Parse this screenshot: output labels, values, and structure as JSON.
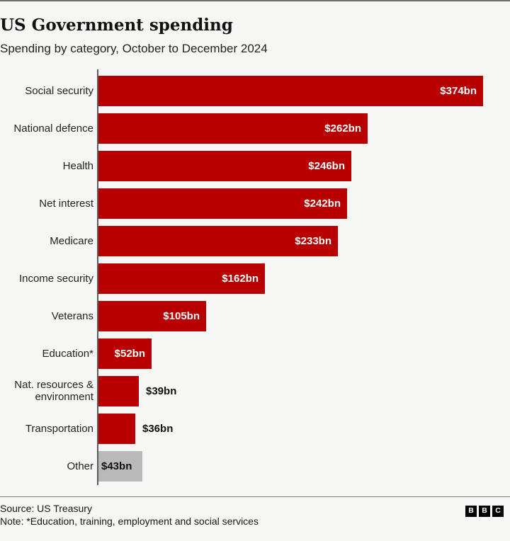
{
  "header": {
    "title": "US Government spending",
    "subtitle": "Spending by category, October to December 2024"
  },
  "chart_data": {
    "type": "bar",
    "orientation": "horizontal",
    "title": "US Government spending",
    "subtitle": "Spending by category, October to December 2024",
    "unit": "$bn",
    "xlim": [
      0,
      374
    ],
    "grid": false,
    "legend": "none",
    "categories": [
      "Social security",
      "National defence",
      "Health",
      "Net interest",
      "Medicare",
      "Income security",
      "Veterans",
      "Education*",
      "Nat. resources & environment",
      "Transportation",
      "Other"
    ],
    "values": [
      374,
      262,
      246,
      242,
      233,
      162,
      105,
      52,
      39,
      36,
      43
    ],
    "value_labels": [
      "$374bn",
      "$262bn",
      "$246bn",
      "$242bn",
      "$233bn",
      "$162bn",
      "$105bn",
      "$52bn",
      "$39bn",
      "$36bn",
      "$43bn"
    ],
    "label_lines": [
      [
        "Social security"
      ],
      [
        "National defence"
      ],
      [
        "Health"
      ],
      [
        "Net interest"
      ],
      [
        "Medicare"
      ],
      [
        "Income security"
      ],
      [
        "Veterans"
      ],
      [
        "Education*"
      ],
      [
        "Nat. resources &",
        "environment"
      ],
      [
        "Transportation"
      ],
      [
        "Other"
      ]
    ],
    "bar_colors": [
      "#b80000",
      "#b80000",
      "#b80000",
      "#b80000",
      "#b80000",
      "#b80000",
      "#b80000",
      "#b80000",
      "#b80000",
      "#b80000",
      "#b9b9b9"
    ],
    "value_placement": [
      "inside",
      "inside",
      "inside",
      "inside",
      "inside",
      "inside",
      "inside",
      "inside",
      "outside",
      "outside",
      "inside-dark"
    ],
    "colors": {
      "bar_red": "#b80000",
      "bar_gray": "#b9b9b9",
      "value_inside_text": "#ffffff",
      "value_outside_text": "#111111",
      "axis_line": "#5c5c5c",
      "background": "#f6f6f4"
    }
  },
  "footer": {
    "source": "Source: US Treasury",
    "note": "Note: *Education, training, employment and social services",
    "logo_letters": [
      "B",
      "B",
      "C"
    ]
  }
}
